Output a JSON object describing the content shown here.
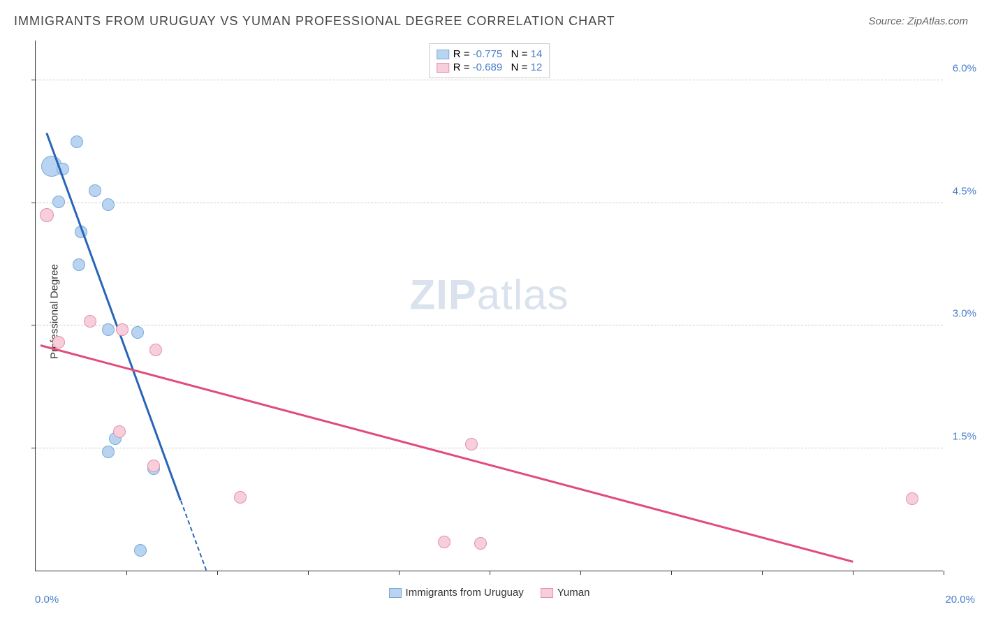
{
  "title": "IMMIGRANTS FROM URUGUAY VS YUMAN PROFESSIONAL DEGREE CORRELATION CHART",
  "source": "Source: ZipAtlas.com",
  "watermark_bold": "ZIP",
  "watermark_light": "atlas",
  "ylabel": "Professional Degree",
  "chart": {
    "type": "scatter",
    "xlim": [
      0.0,
      20.0
    ],
    "ylim": [
      0.0,
      6.5
    ],
    "ytick_values": [
      1.5,
      3.0,
      4.5,
      6.0
    ],
    "ytick_labels": [
      "1.5%",
      "3.0%",
      "4.5%",
      "6.0%"
    ],
    "xtick_values": [
      2,
      4,
      6,
      8,
      10,
      12,
      14,
      16,
      18,
      20
    ],
    "xmin_label": "0.0%",
    "xmax_label": "20.0%",
    "grid_color": "#cccccc",
    "background_color": "#ffffff",
    "series": [
      {
        "key": "uruguay",
        "label": "Immigrants from Uruguay",
        "color_fill": "#b9d4f0",
        "color_stroke": "#7aa9da",
        "trend_color": "#2865b8",
        "R": "-0.775",
        "N": "14",
        "default_radius": 9,
        "points": [
          {
            "x": 0.9,
            "y": 5.25,
            "r": 9
          },
          {
            "x": 0.35,
            "y": 4.95,
            "r": 15
          },
          {
            "x": 0.6,
            "y": 4.92,
            "r": 9
          },
          {
            "x": 1.3,
            "y": 4.65,
            "r": 9
          },
          {
            "x": 0.5,
            "y": 4.52,
            "r": 9
          },
          {
            "x": 1.6,
            "y": 4.48,
            "r": 9
          },
          {
            "x": 1.0,
            "y": 4.15,
            "r": 9
          },
          {
            "x": 0.95,
            "y": 3.75,
            "r": 9
          },
          {
            "x": 1.6,
            "y": 2.95,
            "r": 9
          },
          {
            "x": 2.25,
            "y": 2.92,
            "r": 9
          },
          {
            "x": 1.75,
            "y": 1.62,
            "r": 9
          },
          {
            "x": 1.6,
            "y": 1.45,
            "r": 9
          },
          {
            "x": 2.6,
            "y": 1.25,
            "r": 9
          },
          {
            "x": 2.3,
            "y": 0.25,
            "r": 9
          }
        ],
        "trend": {
          "x1": 0.25,
          "y1": 5.35,
          "x2": 3.2,
          "y2": 0.85,
          "extend_to_y0": true
        }
      },
      {
        "key": "yuman",
        "label": "Yuman",
        "color_fill": "#f6cfdb",
        "color_stroke": "#e78fab",
        "trend_color": "#e14c7a",
        "R": "-0.689",
        "N": "12",
        "default_radius": 9,
        "points": [
          {
            "x": 0.25,
            "y": 4.35,
            "r": 10
          },
          {
            "x": 1.2,
            "y": 3.05,
            "r": 9
          },
          {
            "x": 1.9,
            "y": 2.95,
            "r": 9
          },
          {
            "x": 0.5,
            "y": 2.8,
            "r": 9
          },
          {
            "x": 2.65,
            "y": 2.7,
            "r": 9
          },
          {
            "x": 1.85,
            "y": 1.7,
            "r": 9
          },
          {
            "x": 9.6,
            "y": 1.55,
            "r": 9
          },
          {
            "x": 4.5,
            "y": 0.9,
            "r": 9
          },
          {
            "x": 19.3,
            "y": 0.88,
            "r": 9
          },
          {
            "x": 9.0,
            "y": 0.35,
            "r": 9
          },
          {
            "x": 9.8,
            "y": 0.33,
            "r": 9
          },
          {
            "x": 2.6,
            "y": 1.28,
            "r": 9
          }
        ],
        "trend": {
          "x1": 0.1,
          "y1": 2.75,
          "x2": 18.0,
          "y2": 0.1
        }
      }
    ]
  }
}
